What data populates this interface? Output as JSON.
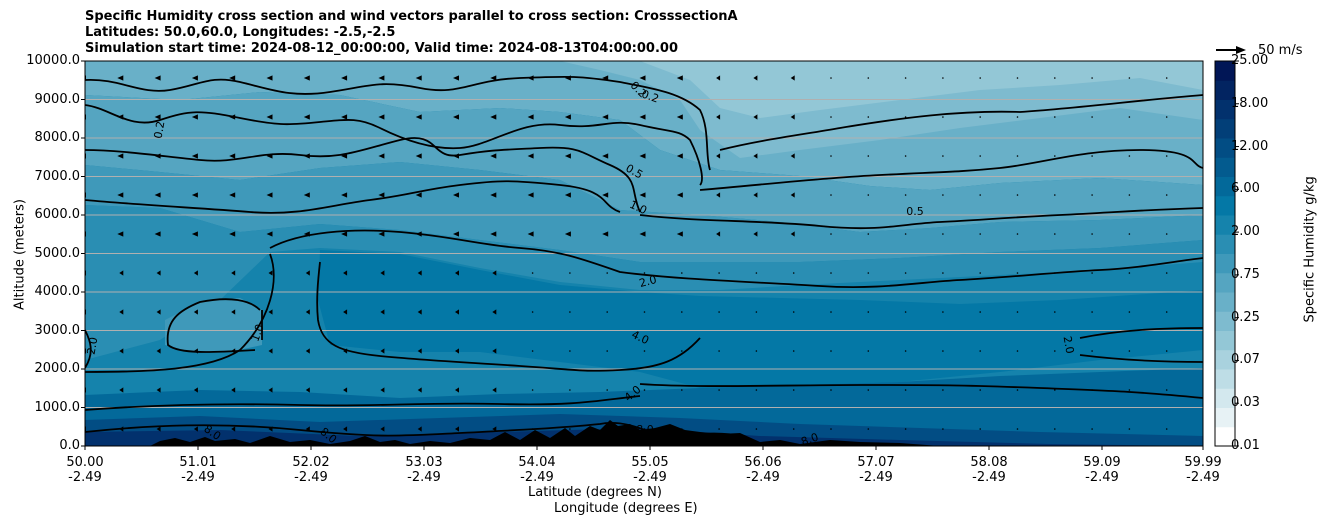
{
  "title": {
    "line1": "Specific Humidity cross section and wind vectors parallel to cross section: CrosssectionA",
    "line2": "Latitudes: 50.0,60.0, Longitudes: -2.5,-2.5",
    "line3": "Simulation start time: 2024-08-12_00:00:00, Valid time: 2024-08-13T04:00:00.00"
  },
  "chart_data": {
    "type": "heatmap",
    "description_x": "distance along cross section from 50.00N to 59.99N at longitude -2.49",
    "xlabel_lat": "Latitude (degrees N)",
    "xlabel_lon": "Longitude (degrees E)",
    "ylabel": "Altitude (meters)",
    "ylim": [
      0,
      10000
    ],
    "yticks": [
      "0.0",
      "1000.0",
      "2000.0",
      "3000.0",
      "4000.0",
      "5000.0",
      "6000.0",
      "7000.0",
      "8000.0",
      "9000.0",
      "10000.0"
    ],
    "xticks_lat": [
      "50.00",
      "51.01",
      "52.02",
      "53.03",
      "54.04",
      "55.05",
      "56.06",
      "57.07",
      "58.08",
      "59.09",
      "59.99"
    ],
    "xticks_lon": [
      "-2.49",
      "-2.49",
      "-2.49",
      "-2.49",
      "-2.49",
      "-2.49",
      "-2.49",
      "-2.49",
      "-2.49",
      "-2.49",
      "-2.49"
    ],
    "grid": "horizontal",
    "colorbar": {
      "label": "Specific Humidity g/kg",
      "ticks": [
        "0.01",
        "0.03",
        "0.07",
        "0.25",
        "0.75",
        "2.00",
        "6.00",
        "12.00",
        "18.00",
        "25.00"
      ],
      "colors": [
        "#ffffff",
        "#e7f2f5",
        "#d3e8ee",
        "#bedde6",
        "#a9d2de",
        "#93c7d6",
        "#7ebbcf",
        "#69b0c8",
        "#55a5c1",
        "#3f99ba",
        "#2a8eb3",
        "#1583ac",
        "#0478a6",
        "#03699a",
        "#035b8f",
        "#024d84",
        "#023f78",
        "#02316d",
        "#022461",
        "#011656"
      ]
    },
    "contour_labels": [
      "0.2",
      "0.2",
      "0.2",
      "0.5",
      "0.5",
      "1.0",
      "1.0",
      "2.0",
      "2.0",
      "2.0",
      "4.0",
      "4.0",
      "8.0",
      "8.0",
      "8.0",
      "8.0"
    ],
    "wind_key": "50 m/s",
    "terrain_color": "#000000"
  }
}
